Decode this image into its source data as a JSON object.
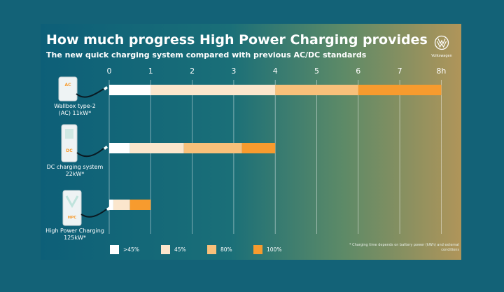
{
  "title": "How much progress High Power Charging provides",
  "subtitle": "The new quick charging system compared with previous AC/DC standards",
  "brand": {
    "name": "Volkswagen",
    "icon": "vw-logo-icon"
  },
  "chargers": [
    {
      "badge": "AC",
      "name": "Wallbox type-2",
      "detail": "(AC) 11kW*",
      "icon": "wallbox-icon"
    },
    {
      "badge": "DC",
      "name": "DC charging system",
      "detail": "22kW*",
      "icon": "dc-charger-icon"
    },
    {
      "badge": "HPC",
      "name": "High Power Charging",
      "detail": "125kW*",
      "icon": "hpc-charger-icon"
    }
  ],
  "legend": [
    {
      "label": ">45%",
      "color": "#ffffff"
    },
    {
      "label": "45%",
      "color": "#fbe6cc"
    },
    {
      "label": "80%",
      "color": "#f8c07a"
    },
    {
      "label": "100%",
      "color": "#f79b2e"
    }
  ],
  "footnote": "* Charging time depends on battery power (kWh) and external conditions",
  "chart_data": {
    "type": "bar",
    "orientation": "horizontal",
    "stacked": true,
    "title": "How much progress High Power Charging provides",
    "subtitle": "The new quick charging system compared with previous AC/DC standards",
    "categories": [
      "Wallbox type-2 (AC) 11kW*",
      "DC charging system 22kW*",
      "High Power Charging 125kW*"
    ],
    "series": [
      {
        "name": ">45%",
        "color": "#ffffff",
        "values": [
          1.0,
          0.5,
          0.1
        ]
      },
      {
        "name": "45%",
        "color": "#fbe6cc",
        "values": [
          3.0,
          1.3,
          0.4
        ]
      },
      {
        "name": "80%",
        "color": "#f8c07a",
        "values": [
          2.0,
          1.4,
          0.0
        ]
      },
      {
        "name": "100%",
        "color": "#f79b2e",
        "values": [
          2.0,
          0.8,
          0.5
        ]
      }
    ],
    "x_ticks": [
      "0",
      "1",
      "2",
      "3",
      "4",
      "5",
      "6",
      "7",
      "8h"
    ],
    "xlim": [
      0,
      8
    ],
    "grid": true,
    "legend_position": "bottom"
  }
}
